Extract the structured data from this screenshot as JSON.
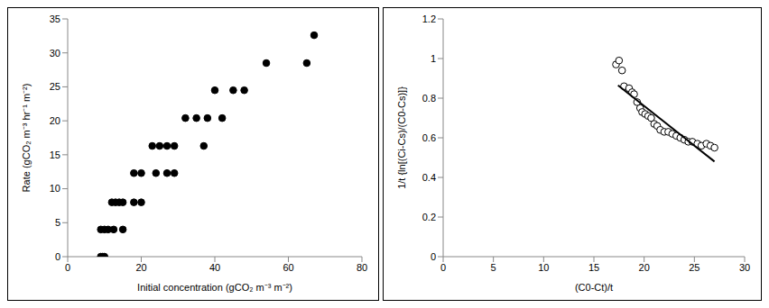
{
  "chart_data": [
    {
      "type": "scatter",
      "x_label": "Initial concentration (gCO₂ m⁻³ m⁻²)",
      "y_label": "Rate (gCO₂ m⁻³ hr⁻¹ m⁻²)",
      "xlim": [
        0,
        80
      ],
      "ylim": [
        0,
        35
      ],
      "xticks": [
        0,
        20,
        40,
        60,
        80
      ],
      "yticks": [
        0,
        5,
        10,
        15,
        20,
        25,
        30,
        35
      ],
      "series": [
        {
          "type": "scatter",
          "marker": "circle",
          "color": "#000000",
          "x": [
            9,
            9.5,
            10,
            9,
            10,
            11,
            12.5,
            15,
            12,
            13,
            14,
            15,
            18,
            20,
            18,
            20,
            24,
            27,
            29,
            23,
            25,
            27,
            29,
            37,
            32,
            35,
            38,
            42,
            40,
            45,
            48,
            54,
            65,
            67
          ],
          "values": [
            0,
            0,
            0,
            4,
            4,
            4,
            4,
            4,
            8,
            8,
            8,
            8,
            8,
            8,
            12.3,
            12.3,
            12.3,
            12.3,
            12.3,
            16.3,
            16.3,
            16.3,
            16.3,
            16.3,
            20.4,
            20.4,
            20.4,
            20.4,
            24.5,
            24.5,
            24.5,
            28.5,
            28.5,
            32.6
          ]
        }
      ]
    },
    {
      "type": "scatter",
      "x_label": "(C0-Ct)/t",
      "y_label": "1/t {ln[(Ci-Cs)/(C0-Cs)]}",
      "xlim": [
        0,
        30
      ],
      "ylim": [
        0,
        1.2
      ],
      "xticks": [
        0,
        5,
        10,
        15,
        20,
        25,
        30
      ],
      "yticks": [
        0,
        0.2,
        0.4,
        0.6,
        0.8,
        1,
        1.2
      ],
      "series": [
        {
          "type": "scatter",
          "marker": "open_circle",
          "color": "#000000",
          "x": [
            17.2,
            17.5,
            17.8,
            18,
            18.5,
            18.8,
            19,
            19.3,
            19.6,
            19.8,
            20.1,
            20.4,
            20.7,
            21,
            21.3,
            21.6,
            22,
            22.4,
            22.8,
            23.2,
            23.6,
            24,
            24.4,
            24.8,
            25.3,
            25.7,
            26.2,
            26.6,
            27
          ],
          "values": [
            0.97,
            0.99,
            0.94,
            0.86,
            0.85,
            0.83,
            0.82,
            0.78,
            0.75,
            0.73,
            0.72,
            0.71,
            0.7,
            0.67,
            0.66,
            0.64,
            0.63,
            0.63,
            0.62,
            0.61,
            0.6,
            0.59,
            0.58,
            0.58,
            0.57,
            0.56,
            0.57,
            0.56,
            0.55
          ]
        },
        {
          "type": "line",
          "line_style": "solid",
          "color": "#000000",
          "x": [
            17.4,
            27
          ],
          "values": [
            0.865,
            0.48
          ]
        }
      ]
    }
  ]
}
